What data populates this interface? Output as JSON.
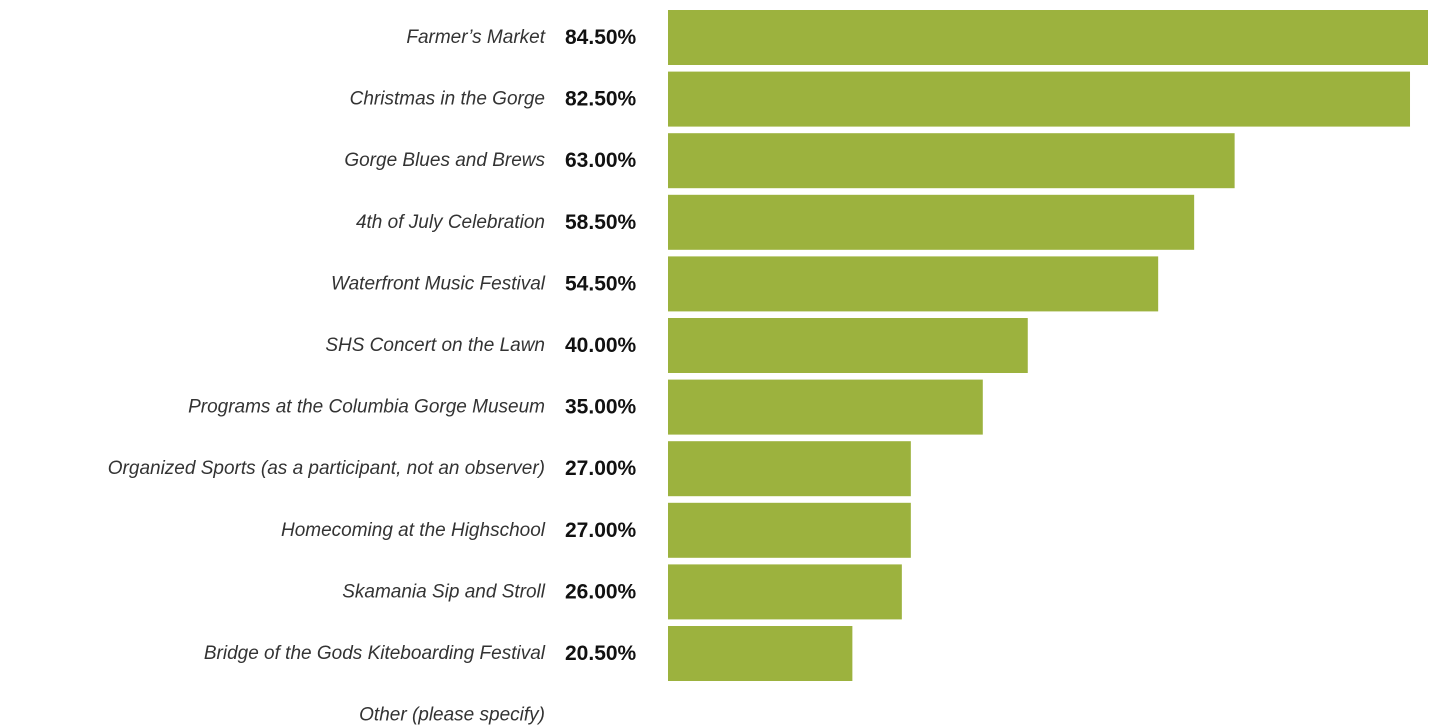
{
  "chart_data": {
    "type": "bar",
    "orientation": "horizontal",
    "categories": [
      "Farmer’s Market",
      "Christmas in the Gorge",
      "Gorge Blues and Brews",
      "4th of July Celebration",
      "Waterfront Music Festival",
      "SHS Concert on the Lawn",
      "Programs at the Columbia Gorge Museum",
      "Organized Sports (as a participant, not an observer)",
      "Homecoming at the Highschool",
      "Skamania Sip and Stroll",
      "Bridge of the Gods Kiteboarding Festival",
      "Other (please specify)"
    ],
    "values": [
      84.5,
      82.5,
      63.0,
      58.5,
      54.5,
      40.0,
      35.0,
      27.0,
      27.0,
      26.0,
      20.5,
      null
    ],
    "value_labels": [
      "84.50%",
      "82.50%",
      "63.00%",
      "58.50%",
      "54.50%",
      "40.00%",
      "35.00%",
      "27.00%",
      "27.00%",
      "26.00%",
      "20.50%",
      ""
    ],
    "xlim": [
      0,
      84.5
    ],
    "grid": false,
    "legend": "none",
    "bar_color": "#9CB23E"
  }
}
